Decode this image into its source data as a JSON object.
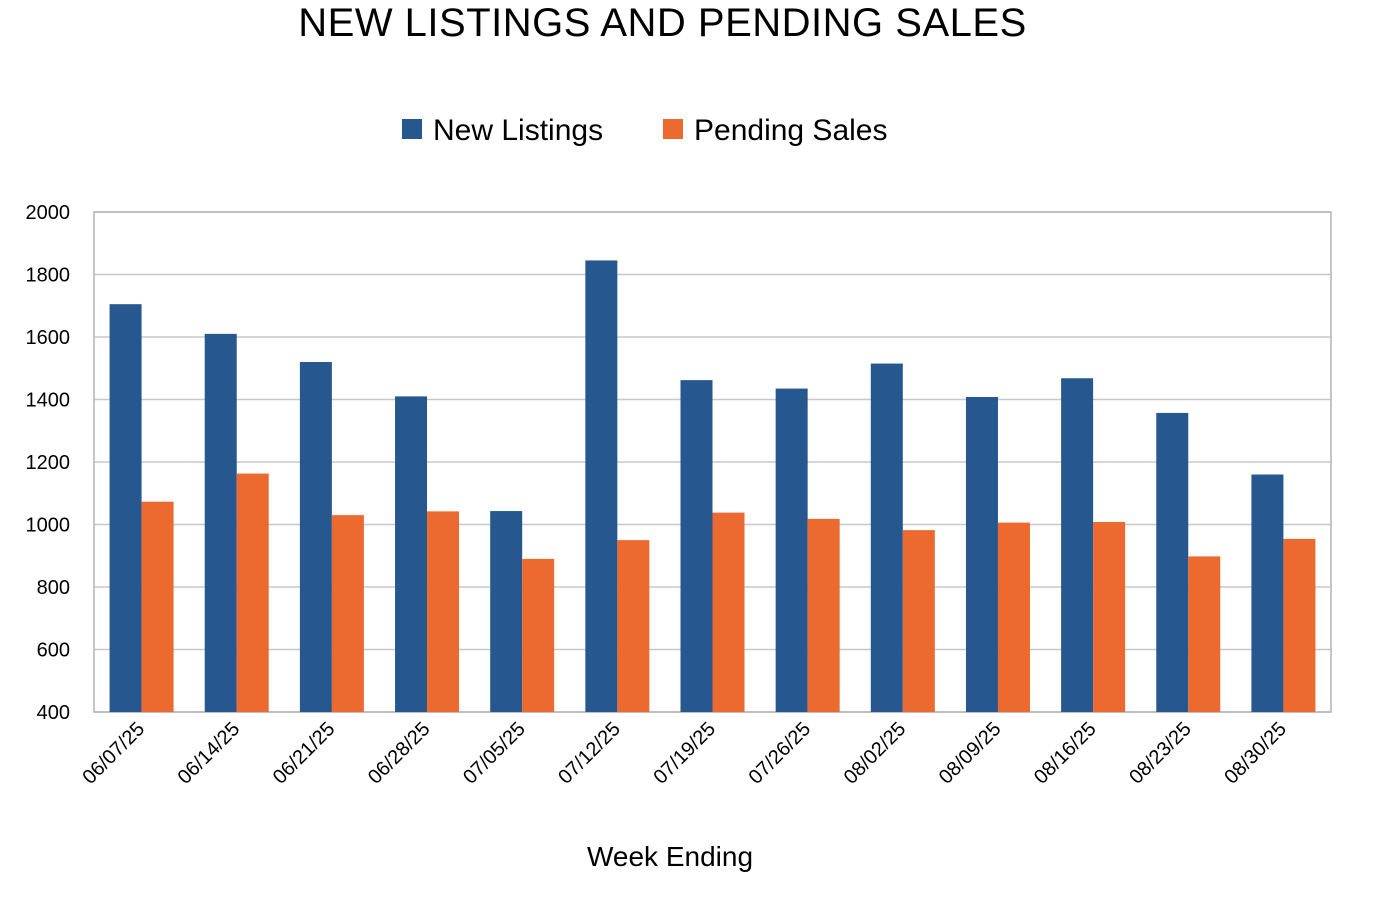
{
  "chart_data": {
    "type": "bar",
    "title": "NEW LISTINGS AND PENDING SALES",
    "xlabel": "Week Ending",
    "ylabel": "",
    "ylim": [
      400,
      2000
    ],
    "yticks": [
      400,
      600,
      800,
      1000,
      1200,
      1400,
      1600,
      1800,
      2000
    ],
    "grid": true,
    "legend_position": "top-center",
    "categories": [
      "06/07/25",
      "06/14/25",
      "06/21/25",
      "06/28/25",
      "07/05/25",
      "07/12/25",
      "07/19/25",
      "07/26/25",
      "08/02/25",
      "08/09/25",
      "08/16/25",
      "08/23/25",
      "08/30/25"
    ],
    "series": [
      {
        "name": "New Listings",
        "color": "#26578f",
        "values": [
          1705,
          1610,
          1520,
          1410,
          1043,
          1845,
          1462,
          1435,
          1515,
          1408,
          1468,
          1357,
          1160
        ]
      },
      {
        "name": "Pending Sales",
        "color": "#ec6a2f",
        "values": [
          1073,
          1163,
          1030,
          1042,
          890,
          950,
          1038,
          1018,
          982,
          1006,
          1008,
          898,
          954
        ]
      }
    ]
  }
}
